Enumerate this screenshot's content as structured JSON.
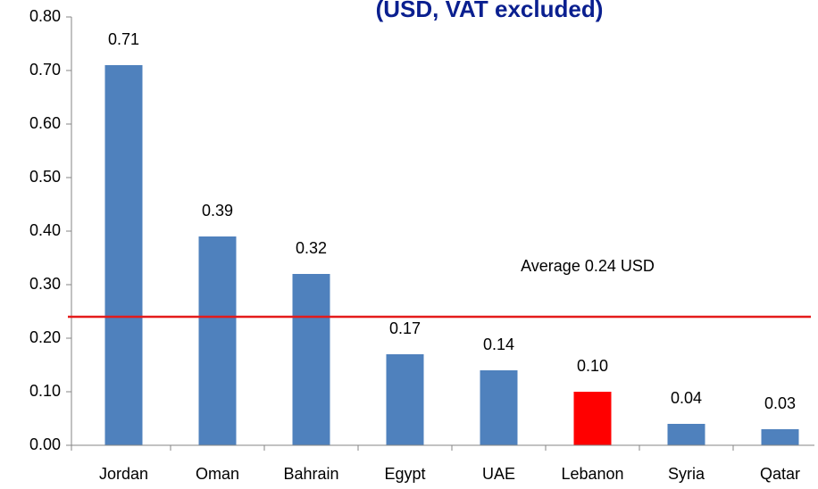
{
  "chart_data": {
    "type": "bar",
    "title": "(USD, VAT excluded)",
    "categories": [
      "Jordan",
      "Oman",
      "Bahrain",
      "Egypt",
      "UAE",
      "Lebanon",
      "Syria",
      "Qatar"
    ],
    "values": [
      0.71,
      0.39,
      0.32,
      0.17,
      0.14,
      0.1,
      0.04,
      0.03
    ],
    "value_labels": [
      "0.71",
      "0.39",
      "0.32",
      "0.17",
      "0.14",
      "0.10",
      "0.04",
      "0.03"
    ],
    "colors": [
      "#4f81bd",
      "#4f81bd",
      "#4f81bd",
      "#4f81bd",
      "#4f81bd",
      "#ff0000",
      "#4f81bd",
      "#4f81bd"
    ],
    "ylim": [
      0,
      0.8
    ],
    "yticks": [
      {
        "value": 0,
        "label": "0.00"
      },
      {
        "value": 0.1,
        "label": "0.10"
      },
      {
        "value": 0.2,
        "label": "0.20"
      },
      {
        "value": 0.3,
        "label": "0.30"
      },
      {
        "value": 0.4,
        "label": "0.40"
      },
      {
        "value": 0.5,
        "label": "0.50"
      },
      {
        "value": 0.6,
        "label": "0.60"
      },
      {
        "value": 0.7,
        "label": "0.70"
      },
      {
        "value": 0.8,
        "label": "0.80"
      }
    ],
    "reference_line": {
      "value": 0.24,
      "label": "Average 0.24 USD",
      "color": "#e41b1b"
    }
  }
}
